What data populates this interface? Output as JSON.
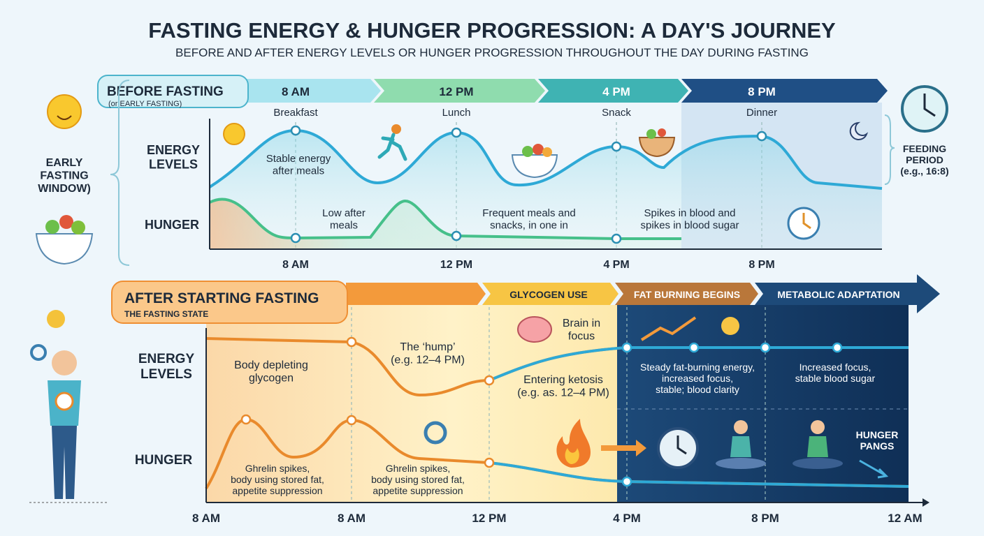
{
  "header": {
    "title": "FASTING ENERGY & HUNGER PROGRESSION: A DAY'S JOURNEY",
    "subtitle": "BEFORE AND AFTER ENERGY LEVELS OR HUNGER PROGRESSION THROUGHOUT THE DAY DURING FASTING"
  },
  "before": {
    "badge": "BEFORE FASTING",
    "badge_note": "(or EARLY FASTING)",
    "times": [
      "8 AM",
      "12 PM",
      "4 PM",
      "8 PM"
    ],
    "meals": [
      "Breakfast",
      "Lunch",
      "Snack",
      "Dinner"
    ],
    "energy_label": [
      "ENERGY",
      "LEVELS"
    ],
    "hunger_label": "HUNGER",
    "side_label": [
      "EARLY",
      "FASTING",
      "WINDOW)"
    ],
    "feeding_label": [
      "FEEDING",
      "PERIOD",
      "(e.g., 16:8)"
    ],
    "notes": [
      [
        "Stable energy",
        "after meals"
      ],
      [
        "Low after",
        "meals"
      ],
      [
        "Frequent meals and",
        "snacks, in one in"
      ],
      [
        "Spikes in blood and",
        "spikes in blood sugar"
      ]
    ],
    "x_labels": [
      "8 AM",
      "12 PM",
      "4 PM",
      "8 PM"
    ]
  },
  "after": {
    "badge": "AFTER STARTING FASTING",
    "badge_note": "THE FASTING STATE",
    "phases": [
      "GLYCOGEN USE",
      "FAT BURNING BEGINS",
      "METABOLIC ADAPTATION"
    ],
    "energy_label": [
      "ENERGY",
      "LEVELS"
    ],
    "hunger_label": "HUNGER",
    "notes": [
      [
        "Body depleting",
        "glycogen"
      ],
      [
        "The ‘hump’",
        "(e.g. 12–4 PM)"
      ],
      [
        "Brain in",
        "focus"
      ],
      [
        "Entering ketosis",
        "(e.g. as. 12–4 PM)"
      ],
      [
        "Steady fat-burning energy,",
        "increased focus,",
        "stable; blood clarity"
      ],
      [
        "Increased focus,",
        "stable blood sugar"
      ],
      [
        "Ghrelin spikes,",
        "body using stored fat,",
        "appetite suppression"
      ],
      [
        "Ghrelin spikes,",
        "body using stored fat,",
        "appetite suppression"
      ],
      [
        "HUNGER",
        "PANGS"
      ]
    ],
    "x_labels": [
      "8 AM",
      "8 AM",
      "12 PM",
      "4 PM",
      "8 PM",
      "12 AM"
    ]
  }
}
